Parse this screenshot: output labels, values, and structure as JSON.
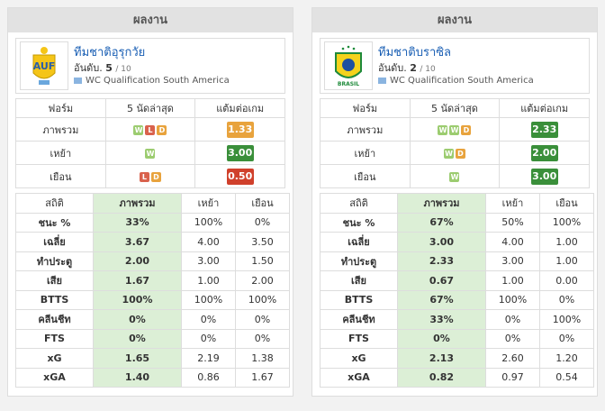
{
  "panels": [
    {
      "header": "ผลงาน",
      "team": {
        "name": "ทีมชาติอุรุกวัย",
        "rank_label": "อันดับ.",
        "rank": "5",
        "rank_total": "/ 10",
        "competition": "WC Qualification South America"
      },
      "form": {
        "headers": [
          "ฟอร์ม",
          "5 นัดล่าสุด",
          "แต้มต่อเกม"
        ],
        "rows": [
          {
            "label": "ภาพรวม",
            "results": [
              "W",
              "L",
              "D"
            ],
            "ppg": "1.33",
            "color": "#e8a33d"
          },
          {
            "label": "เหย้า",
            "results": [
              "W"
            ],
            "ppg": "3.00",
            "color": "#3a8f3a"
          },
          {
            "label": "เยือน",
            "results": [
              "L",
              "D"
            ],
            "ppg": "0.50",
            "color": "#d0402b"
          }
        ]
      },
      "stats": {
        "headers": [
          "สถิติ",
          "ภาพรวม",
          "เหย้า",
          "เยือน"
        ],
        "rows": [
          [
            "ชนะ %",
            "33%",
            "100%",
            "0%"
          ],
          [
            "เฉลี่ย",
            "3.67",
            "4.00",
            "3.50"
          ],
          [
            "ทำประตู",
            "2.00",
            "3.00",
            "1.50"
          ],
          [
            "เสีย",
            "1.67",
            "1.00",
            "2.00"
          ],
          [
            "BTTS",
            "100%",
            "100%",
            "100%"
          ],
          [
            "คลีนชีท",
            "0%",
            "0%",
            "0%"
          ],
          [
            "FTS",
            "0%",
            "0%",
            "0%"
          ],
          [
            "xG",
            "1.65",
            "2.19",
            "1.38"
          ],
          [
            "xGA",
            "1.40",
            "0.86",
            "1.67"
          ]
        ]
      }
    },
    {
      "header": "ผลงาน",
      "team": {
        "name": "ทีมชาติบราซิล",
        "rank_label": "อันดับ.",
        "rank": "2",
        "rank_total": "/ 10",
        "competition": "WC Qualification South America"
      },
      "form": {
        "headers": [
          "ฟอร์ม",
          "5 นัดล่าสุด",
          "แต้มต่อเกม"
        ],
        "rows": [
          {
            "label": "ภาพรวม",
            "results": [
              "W",
              "W",
              "D"
            ],
            "ppg": "2.33",
            "color": "#3a8f3a"
          },
          {
            "label": "เหย้า",
            "results": [
              "W",
              "D"
            ],
            "ppg": "2.00",
            "color": "#3a8f3a"
          },
          {
            "label": "เยือน",
            "results": [
              "W"
            ],
            "ppg": "3.00",
            "color": "#3a8f3a"
          }
        ]
      },
      "stats": {
        "headers": [
          "สถิติ",
          "ภาพรวม",
          "เหย้า",
          "เยือน"
        ],
        "rows": [
          [
            "ชนะ %",
            "67%",
            "50%",
            "100%"
          ],
          [
            "เฉลี่ย",
            "3.00",
            "4.00",
            "1.00"
          ],
          [
            "ทำประตู",
            "2.33",
            "3.00",
            "1.00"
          ],
          [
            "เสีย",
            "0.67",
            "1.00",
            "0.00"
          ],
          [
            "BTTS",
            "67%",
            "100%",
            "0%"
          ],
          [
            "คลีนชีท",
            "33%",
            "0%",
            "100%"
          ],
          [
            "FTS",
            "0%",
            "0%",
            "0%"
          ],
          [
            "xG",
            "2.13",
            "2.60",
            "1.20"
          ],
          [
            "xGA",
            "0.82",
            "0.97",
            "0.54"
          ]
        ]
      }
    }
  ]
}
